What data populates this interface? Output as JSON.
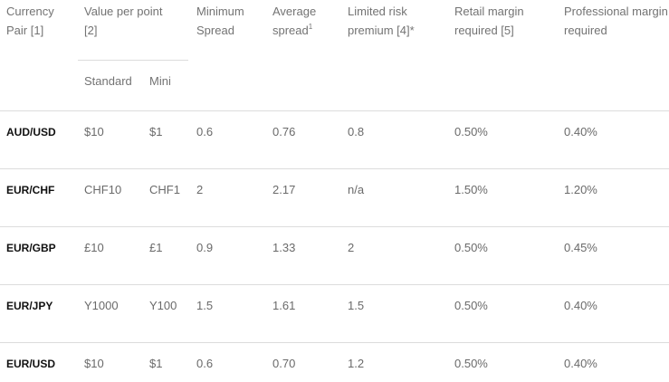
{
  "headers": {
    "currency_pair": "Currency Pair [1]",
    "value_per_point": "Value per point [2]",
    "minimum_spread": "Minimum Spread",
    "average_spread": "Average spread",
    "average_spread_sup": "1",
    "limited_risk_premium": "Limited risk premium [4]*",
    "retail_margin": "Retail margin required [5]",
    "professional_margin": "Professional margin required",
    "standard": "Standard",
    "mini": "Mini"
  },
  "rows": [
    {
      "pair": "AUD/USD",
      "standard": "$10",
      "mini": "$1",
      "min_spread": "0.6",
      "avg_spread": "0.76",
      "lrp": "0.8",
      "retail": "0.50%",
      "professional": "0.40%"
    },
    {
      "pair": "EUR/CHF",
      "standard": "CHF10",
      "mini": "CHF1",
      "min_spread": "2",
      "avg_spread": "2.17",
      "lrp": "n/a",
      "retail": "1.50%",
      "professional": "1.20%"
    },
    {
      "pair": "EUR/GBP",
      "standard": "£10",
      "mini": "£1",
      "min_spread": "0.9",
      "avg_spread": "1.33",
      "lrp": "2",
      "retail": "0.50%",
      "professional": "0.45%"
    },
    {
      "pair": "EUR/JPY",
      "standard": "Y1000",
      "mini": "Y100",
      "min_spread": "1.5",
      "avg_spread": "1.61",
      "lrp": "1.5",
      "retail": "0.50%",
      "professional": "0.40%"
    },
    {
      "pair": "EUR/USD",
      "standard": "$10",
      "mini": "$1",
      "min_spread": "0.6",
      "avg_spread": "0.70",
      "lrp": "1.2",
      "retail": "0.50%",
      "professional": "0.40%"
    }
  ]
}
